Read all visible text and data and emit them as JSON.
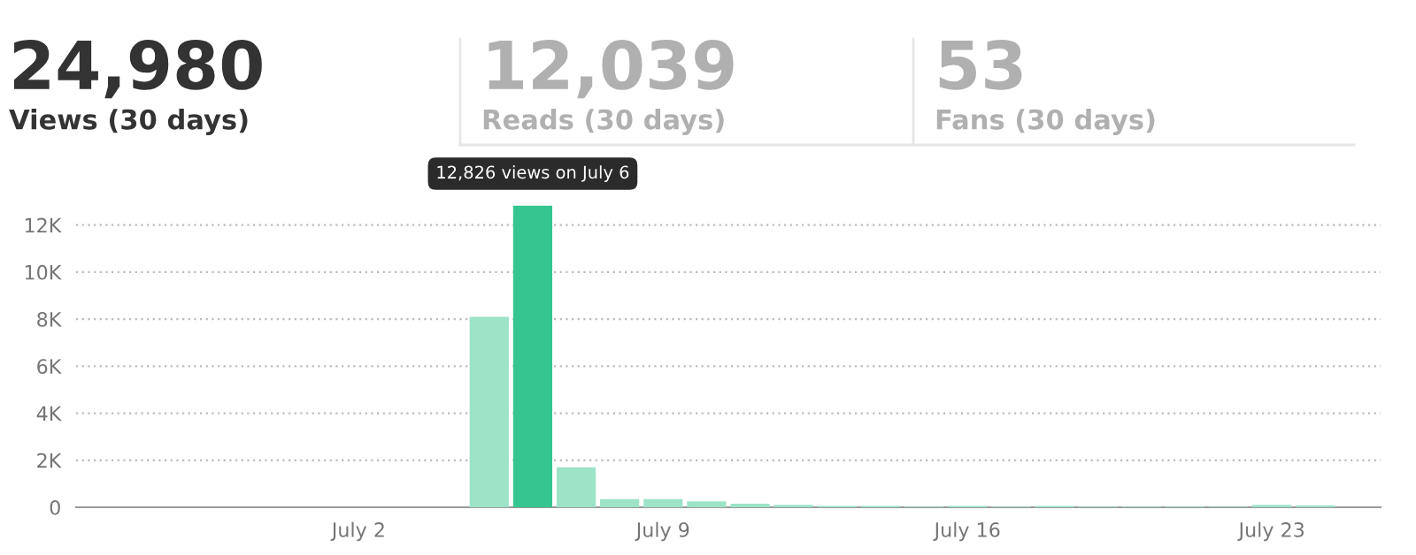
{
  "chart_data": {
    "type": "bar",
    "categories": [
      null,
      null,
      null,
      null,
      null,
      null,
      "July 2",
      null,
      null,
      null,
      null,
      null,
      null,
      "July 9",
      null,
      null,
      null,
      null,
      null,
      null,
      "July 16",
      null,
      null,
      null,
      null,
      null,
      null,
      "July 23",
      null,
      null
    ],
    "values": [
      0,
      0,
      0,
      0,
      0,
      0,
      0,
      0,
      0,
      8100,
      12826,
      1700,
      350,
      350,
      250,
      150,
      100,
      60,
      60,
      30,
      60,
      30,
      60,
      30,
      30,
      30,
      20,
      100,
      80,
      0
    ],
    "colors": [
      "#9ce3c7",
      "#9ce3c7",
      "#9ce3c7",
      "#9ce3c7",
      "#9ce3c7",
      "#9ce3c7",
      "#9ce3c7",
      "#9ce3c7",
      "#9ce3c7",
      "#9ce3c7",
      "#34c68e",
      "#9ce3c7",
      "#9ce3c7",
      "#9ce3c7",
      "#9ce3c7",
      "#9ce3c7",
      "#9ce3c7",
      "#9ce3c7",
      "#9ce3c7",
      "#9ce3c7",
      "#9ce3c7",
      "#9ce3c7",
      "#9ce3c7",
      "#9ce3c7",
      "#9ce3c7",
      "#9ce3c7",
      "#9ce3c7",
      "#9ce3c7",
      "#9ce3c7",
      "#9ce3c7"
    ],
    "ylim": [
      0,
      13000
    ],
    "yticks": [
      0,
      {
        "value": 2000,
        "label": "2K"
      },
      {
        "value": 4000,
        "label": "4K"
      },
      {
        "value": 6000,
        "label": "6K"
      },
      {
        "value": 8000,
        "label": "8K"
      },
      {
        "value": 10000,
        "label": "10K"
      },
      {
        "value": 12000,
        "label": "12K"
      }
    ],
    "grid": "y",
    "annotations": [
      "24,980",
      "Views (30 days)",
      "12,039",
      "Reads (30 days)",
      "53",
      "Fans (30 days)",
      "12,826 views on July 6"
    ]
  }
}
